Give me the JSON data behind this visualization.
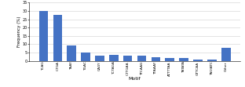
{
  "categories": [
    "TCAG",
    "CTGA",
    "TAAY",
    "TGAC",
    "CAGY",
    "TCTAGA",
    "CTTGAA",
    "TTCAAG",
    "TTAAAY",
    "ATTTTAA",
    "TATATA",
    "GTTCAA",
    "TAGIATC",
    "Other"
  ],
  "values": [
    30.2,
    27.6,
    9.5,
    5.0,
    3.0,
    3.5,
    3.0,
    3.0,
    2.0,
    1.6,
    1.6,
    0.6,
    0.6,
    8.0
  ],
  "bar_color": "#4472C4",
  "xlabel": "Motif",
  "ylabel": "Frequency (%)",
  "ylim": [
    0,
    35
  ],
  "yticks": [
    0,
    5,
    10,
    15,
    20,
    25,
    30,
    35
  ],
  "background_color": "#ffffff",
  "grid_color": "#d0d0d0"
}
